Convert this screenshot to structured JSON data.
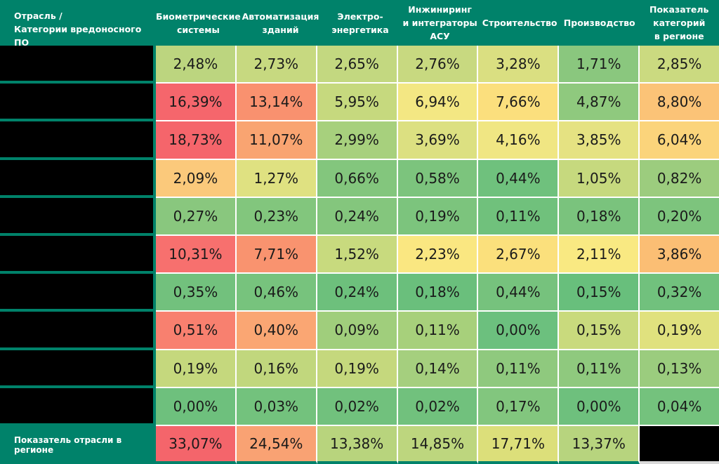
{
  "colors": {
    "teal": "#00826A",
    "black_redaction": "#000000",
    "grid_white": "#FFFFFF",
    "bottom_right_gray": "#D9D9D9",
    "header_text": "#FFFFFF",
    "cell_text": "#1A1A1A",
    "scale_low_green": "#63BE7B",
    "scale_mid_yellow": "#FFEB84",
    "scale_high_red": "#F8696B"
  },
  "table": {
    "corner_header": {
      "line1": "Отрасль /",
      "line2": "Категории вредоносного ПО"
    },
    "columns": [
      {
        "label": "Биометрические\nсистемы"
      },
      {
        "label": "Автоматизация\nзданий"
      },
      {
        "label": "Электро-\nэнергетика"
      },
      {
        "label": "Инжиниринг\nи интеграторы\nАСУ"
      },
      {
        "label": "Строительство"
      },
      {
        "label": "Производство"
      },
      {
        "label": "Показатель\nкатегорий\nв регионе"
      }
    ],
    "rows": [
      {
        "label": "",
        "redacted": true,
        "cells": [
          {
            "v": "2,48%",
            "c": "#BCD57F"
          },
          {
            "v": "2,73%",
            "c": "#C7D980"
          },
          {
            "v": "2,65%",
            "c": "#C3D880"
          },
          {
            "v": "2,76%",
            "c": "#C8D980"
          },
          {
            "v": "3,28%",
            "c": "#DADF81"
          },
          {
            "v": "1,71%",
            "c": "#8AC77E"
          },
          {
            "v": "2,85%",
            "c": "#CBDA80"
          }
        ]
      },
      {
        "label": "",
        "redacted": true,
        "cells": [
          {
            "v": "16,39%",
            "c": "#F5666C"
          },
          {
            "v": "13,14%",
            "c": "#F9916F"
          },
          {
            "v": "5,95%",
            "c": "#C6D97E"
          },
          {
            "v": "6,94%",
            "c": "#F3E783"
          },
          {
            "v": "7,66%",
            "c": "#FBDF7D"
          },
          {
            "v": "4,87%",
            "c": "#8FC97E"
          },
          {
            "v": "8,80%",
            "c": "#FBC377"
          }
        ]
      },
      {
        "label": "",
        "redacted": true,
        "cells": [
          {
            "v": "18,73%",
            "c": "#F5656B"
          },
          {
            "v": "11,07%",
            "c": "#F9A471"
          },
          {
            "v": "2,99%",
            "c": "#A7D07D"
          },
          {
            "v": "3,69%",
            "c": "#DCE081"
          },
          {
            "v": "4,16%",
            "c": "#F0E683"
          },
          {
            "v": "3,85%",
            "c": "#E5E282"
          },
          {
            "v": "6,04%",
            "c": "#FBD47B"
          }
        ]
      },
      {
        "label": "",
        "redacted": true,
        "cells": [
          {
            "v": "2,09%",
            "c": "#FBC97B"
          },
          {
            "v": "1,27%",
            "c": "#DFE181"
          },
          {
            "v": "0,66%",
            "c": "#83C67D"
          },
          {
            "v": "0,58%",
            "c": "#7CC47D"
          },
          {
            "v": "0,44%",
            "c": "#6FC17D"
          },
          {
            "v": "1,05%",
            "c": "#C6D97E"
          },
          {
            "v": "0,82%",
            "c": "#9CCC7E"
          }
        ]
      },
      {
        "label": "",
        "redacted": true,
        "cells": [
          {
            "v": "0,27%",
            "c": "#89C77E"
          },
          {
            "v": "0,23%",
            "c": "#82C67D"
          },
          {
            "v": "0,24%",
            "c": "#84C67D"
          },
          {
            "v": "0,19%",
            "c": "#7CC47D"
          },
          {
            "v": "0,11%",
            "c": "#70C17C"
          },
          {
            "v": "0,18%",
            "c": "#7AC37D"
          },
          {
            "v": "0,20%",
            "c": "#7DC47D"
          }
        ]
      },
      {
        "label": "",
        "redacted": true,
        "cells": [
          {
            "v": "10,31%",
            "c": "#F7706E"
          },
          {
            "v": "7,71%",
            "c": "#F9936F"
          },
          {
            "v": "1,52%",
            "c": "#C8DA7E"
          },
          {
            "v": "2,23%",
            "c": "#FAE781"
          },
          {
            "v": "2,67%",
            "c": "#FBE07C"
          },
          {
            "v": "2,11%",
            "c": "#F9E982"
          },
          {
            "v": "3,86%",
            "c": "#FBBE74"
          }
        ]
      },
      {
        "label": "",
        "redacted": true,
        "cells": [
          {
            "v": "0,35%",
            "c": "#72C17D"
          },
          {
            "v": "0,46%",
            "c": "#77C37D"
          },
          {
            "v": "0,24%",
            "c": "#6DC07C"
          },
          {
            "v": "0,18%",
            "c": "#6ABF7C"
          },
          {
            "v": "0,44%",
            "c": "#76C27D"
          },
          {
            "v": "0,15%",
            "c": "#68BF7C"
          },
          {
            "v": "0,32%",
            "c": "#71C17D"
          }
        ]
      },
      {
        "label": "",
        "redacted": true,
        "cells": [
          {
            "v": "0,51%",
            "c": "#F8806F"
          },
          {
            "v": "0,40%",
            "c": "#FAA673"
          },
          {
            "v": "0,09%",
            "c": "#A0CE7C"
          },
          {
            "v": "0,11%",
            "c": "#A7D07B"
          },
          {
            "v": "0,00%",
            "c": "#6CC07E"
          },
          {
            "v": "0,15%",
            "c": "#C9DA7D"
          },
          {
            "v": "0,19%",
            "c": "#E0E17E"
          }
        ]
      },
      {
        "label": "",
        "redacted": true,
        "cells": [
          {
            "v": "0,19%",
            "c": "#C5D87D"
          },
          {
            "v": "0,16%",
            "c": "#C1D77D"
          },
          {
            "v": "0,19%",
            "c": "#C5D87D"
          },
          {
            "v": "0,14%",
            "c": "#A5CF7E"
          },
          {
            "v": "0,11%",
            "c": "#8FC97E"
          },
          {
            "v": "0,11%",
            "c": "#8FC97E"
          },
          {
            "v": "0,13%",
            "c": "#9BCC7E"
          }
        ]
      },
      {
        "label": "",
        "redacted": true,
        "cells": [
          {
            "v": "0,00%",
            "c": "#6EC07D"
          },
          {
            "v": "0,03%",
            "c": "#73C27D"
          },
          {
            "v": "0,02%",
            "c": "#71C17D"
          },
          {
            "v": "0,02%",
            "c": "#71C17D"
          },
          {
            "v": "0,17%",
            "c": "#82C67E"
          },
          {
            "v": "0,00%",
            "c": "#6EC07D"
          },
          {
            "v": "0,04%",
            "c": "#74C27D"
          }
        ]
      }
    ],
    "footer": {
      "label": "Показатель отрасли в регионе",
      "cells": [
        {
          "v": "33,07%",
          "c": "#F4656B"
        },
        {
          "v": "24,54%",
          "c": "#F9A273"
        },
        {
          "v": "13,38%",
          "c": "#B8D47D"
        },
        {
          "v": "14,85%",
          "c": "#BDD67E"
        },
        {
          "v": "17,71%",
          "c": "#DCDF7A"
        },
        {
          "v": "13,37%",
          "c": "#B7D47E"
        }
      ],
      "last_cell_redacted": true
    }
  },
  "chart_data": {
    "type": "heatmap",
    "title": "Отрасль / Категории вредоносного ПО",
    "columns": [
      "Биометрические системы",
      "Автоматизация зданий",
      "Электро-энергетика",
      "Инжиниринг и интеграторы АСУ",
      "Строительство",
      "Производство",
      "Показатель категорий в регионе"
    ],
    "rows": [
      "[redacted]",
      "[redacted]",
      "[redacted]",
      "[redacted]",
      "[redacted]",
      "[redacted]",
      "[redacted]",
      "[redacted]",
      "[redacted]",
      "[redacted]",
      "Показатель отрасли в регионе"
    ],
    "values_percent": [
      [
        2.48,
        2.73,
        2.65,
        2.76,
        3.28,
        1.71,
        2.85
      ],
      [
        16.39,
        13.14,
        5.95,
        6.94,
        7.66,
        4.87,
        8.8
      ],
      [
        18.73,
        11.07,
        2.99,
        3.69,
        4.16,
        3.85,
        6.04
      ],
      [
        2.09,
        1.27,
        0.66,
        0.58,
        0.44,
        1.05,
        0.82
      ],
      [
        0.27,
        0.23,
        0.24,
        0.19,
        0.11,
        0.18,
        0.2
      ],
      [
        10.31,
        7.71,
        1.52,
        2.23,
        2.67,
        2.11,
        3.86
      ],
      [
        0.35,
        0.46,
        0.24,
        0.18,
        0.44,
        0.15,
        0.32
      ],
      [
        0.51,
        0.4,
        0.09,
        0.11,
        0.0,
        0.15,
        0.19
      ],
      [
        0.19,
        0.16,
        0.19,
        0.14,
        0.11,
        0.11,
        0.13
      ],
      [
        0.0,
        0.03,
        0.02,
        0.02,
        0.17,
        0.0,
        0.04
      ],
      [
        33.07,
        24.54,
        13.38,
        14.85,
        17.71,
        13.37,
        null
      ]
    ],
    "value_format": "percent, comma decimal separator",
    "color_scale": {
      "low": "#63BE7B",
      "mid": "#FFEB84",
      "high": "#F8696B"
    },
    "legend_position": "none",
    "grid": "white 2px gridlines between colored cells; teal separators around black redacted cells"
  }
}
